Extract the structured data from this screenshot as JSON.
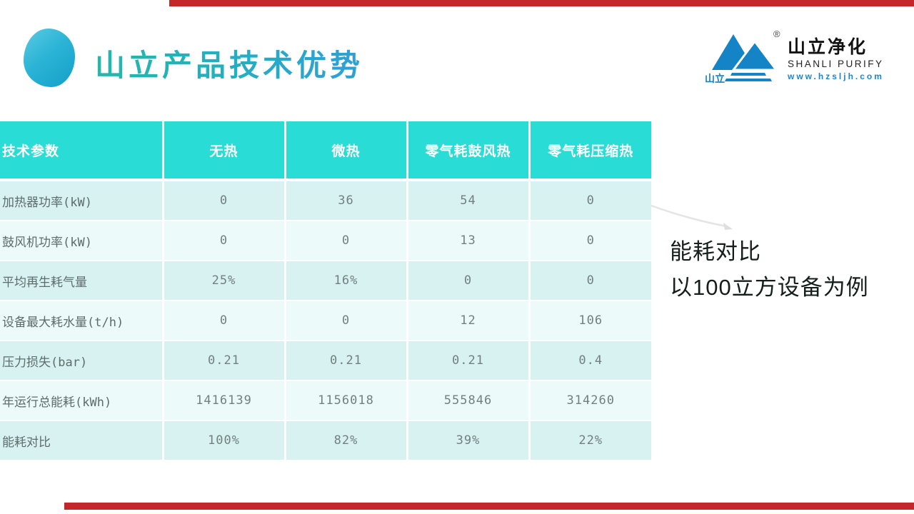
{
  "slide": {
    "title": "山立产品技术优势",
    "accent_red": "#c5262c",
    "header_teal": "#2adcd6",
    "row_dark": "#d7f2f1",
    "row_light": "#ecfbfa"
  },
  "logo": {
    "symbol_text": "山立",
    "registered_mark": "®",
    "name_cn": "山立净化",
    "name_en": "SHANLI PURIFY",
    "website": "www.hzsljh.com",
    "brand_blue": "#1e86c8"
  },
  "table": {
    "headers": [
      "技术参数",
      "无热",
      "微热",
      "零气耗鼓风热",
      "零气耗压缩热"
    ],
    "rows": [
      {
        "label": "加热器功率(kW)",
        "values": [
          "0",
          "36",
          "54",
          "0"
        ]
      },
      {
        "label": "鼓风机功率(kW)",
        "values": [
          "0",
          "0",
          "13",
          "0"
        ]
      },
      {
        "label": "平均再生耗气量",
        "values": [
          "25%",
          "16%",
          "0",
          "0"
        ]
      },
      {
        "label": "设备最大耗水量(t/h)",
        "values": [
          "0",
          "0",
          "12",
          "106"
        ]
      },
      {
        "label": "压力损失(bar)",
        "values": [
          "0.21",
          "0.21",
          "0.21",
          "0.4"
        ]
      },
      {
        "label": "年运行总能耗(kWh)",
        "values": [
          "1416139",
          "1156018",
          "555846",
          "314260"
        ]
      },
      {
        "label": "能耗对比",
        "values": [
          "100%",
          "82%",
          "39%",
          "22%"
        ]
      }
    ]
  },
  "annotation": {
    "line1": "能耗对比",
    "line2": "以100立方设备为例"
  }
}
